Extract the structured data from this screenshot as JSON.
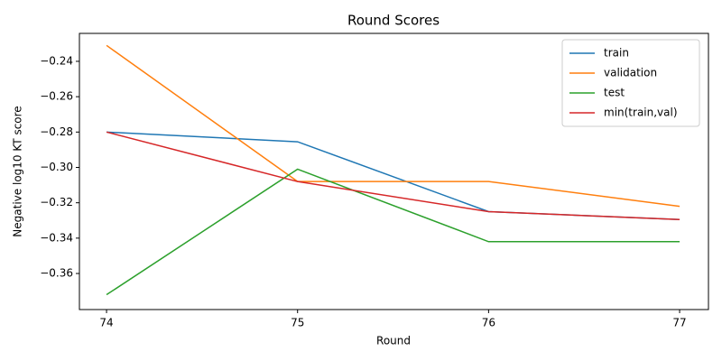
{
  "chart_data": {
    "type": "line",
    "title": "Round Scores",
    "xlabel": "Round",
    "ylabel": "Negative log10 KT score",
    "x": [
      74,
      75,
      76,
      77
    ],
    "series": [
      {
        "name": "train",
        "color": "#1f77b4",
        "values": [
          -0.28,
          -0.2855,
          -0.325,
          -0.3295
        ]
      },
      {
        "name": "validation",
        "color": "#ff7f0e",
        "values": [
          -0.231,
          -0.308,
          -0.308,
          -0.322
        ]
      },
      {
        "name": "test",
        "color": "#2ca02c",
        "values": [
          -0.372,
          -0.301,
          -0.342,
          -0.342
        ]
      },
      {
        "name": "min(train,val)",
        "color": "#d62728",
        "values": [
          -0.28,
          -0.308,
          -0.325,
          -0.3295
        ]
      }
    ],
    "xlim": [
      73.858,
      77.151
    ],
    "ylim": [
      -0.3804,
      -0.2242
    ],
    "xticks": [
      74,
      75,
      76,
      77
    ],
    "yticks": [
      {
        "value": -0.36,
        "label": "−0.36"
      },
      {
        "value": -0.34,
        "label": "−0.34"
      },
      {
        "value": -0.32,
        "label": "−0.32"
      },
      {
        "value": -0.3,
        "label": "−0.30"
      },
      {
        "value": -0.28,
        "label": "−0.28"
      },
      {
        "value": -0.26,
        "label": "−0.26"
      },
      {
        "value": -0.24,
        "label": "−0.24"
      }
    ],
    "legend": "upper right",
    "grid": false
  }
}
